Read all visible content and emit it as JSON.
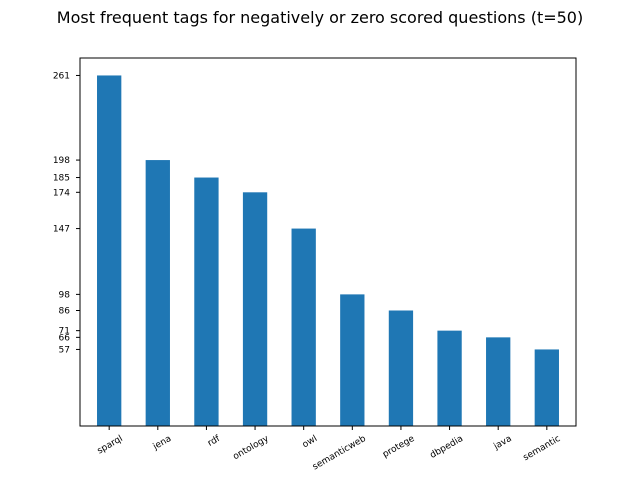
{
  "chart_data": {
    "type": "bar",
    "title": "Most frequent tags for negatively or zero scored questions (t=50)",
    "categories": [
      "sparql",
      "jena",
      "rdf",
      "ontology",
      "owl",
      "semanticweb",
      "protege",
      "dbpedia",
      "java",
      "semantic"
    ],
    "values": [
      261,
      198,
      185,
      174,
      147,
      98,
      86,
      71,
      66,
      57
    ],
    "yticks": [
      261,
      198,
      185,
      174,
      147,
      98,
      86,
      71,
      66,
      57
    ],
    "ylim": [
      0,
      274
    ],
    "xlabel": "",
    "ylabel": "",
    "grid": false,
    "legend": "none",
    "bar_color": "#1f77b4"
  }
}
